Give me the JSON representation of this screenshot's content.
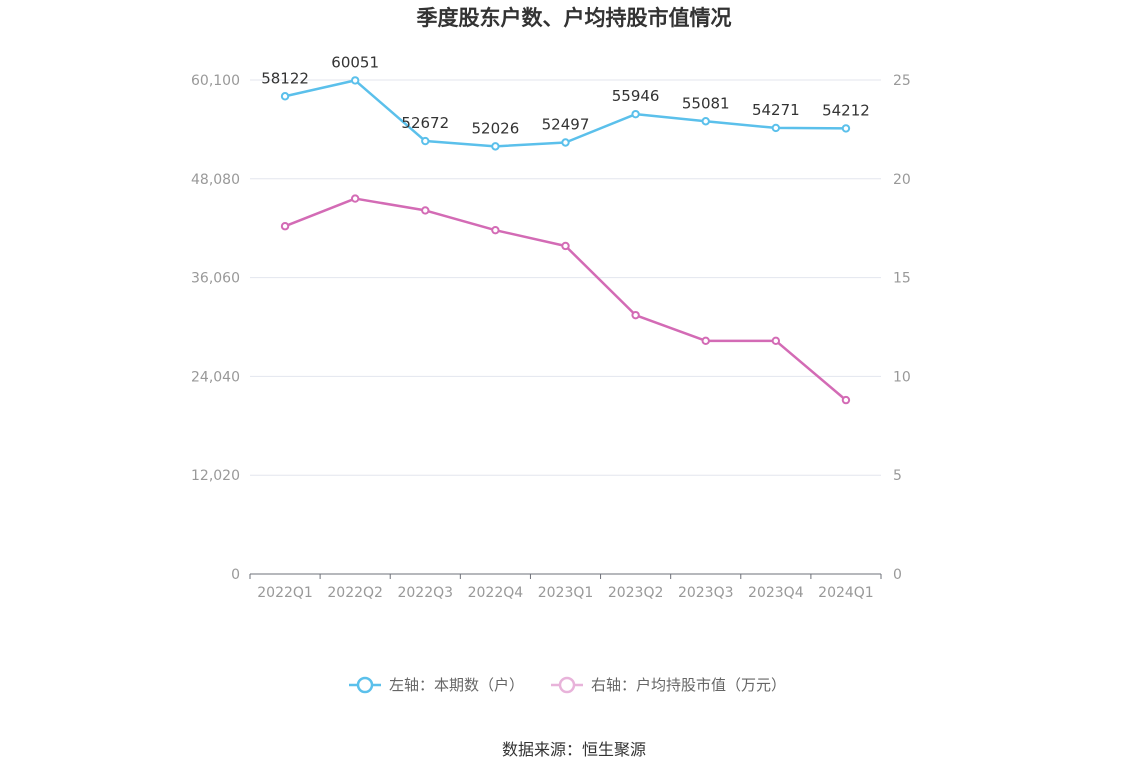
{
  "chart_data": {
    "type": "line",
    "title": "季度股东户数、户均持股市值情况",
    "categories": [
      "2022Q1",
      "2022Q2",
      "2022Q3",
      "2022Q4",
      "2023Q1",
      "2023Q2",
      "2023Q3",
      "2023Q4",
      "2024Q1"
    ],
    "series": [
      {
        "name": "左轴：本期数（户）",
        "axis": "left",
        "color": "#5bc0eb",
        "values": [
          58122,
          60051,
          52672,
          52026,
          52497,
          55946,
          55081,
          54271,
          54212
        ],
        "data_labels": [
          "58122",
          "60051",
          "52672",
          "52026",
          "52497",
          "55946",
          "55081",
          "54271",
          "54212"
        ]
      },
      {
        "name": "右轴：户均持股市值（万元）",
        "axis": "right",
        "color": "#d36bb5",
        "values": [
          17.6,
          19.0,
          18.4,
          17.4,
          16.6,
          13.1,
          11.8,
          11.8,
          8.8
        ]
      }
    ],
    "y_left": {
      "range": [
        0,
        60100
      ],
      "ticks": [
        "0",
        "12,020",
        "24,040",
        "36,060",
        "48,080",
        "60,100"
      ]
    },
    "y_right": {
      "range": [
        0,
        25
      ],
      "ticks": [
        "0",
        "5",
        "10",
        "15",
        "20",
        "25"
      ]
    },
    "grid": true,
    "legend_position": "bottom",
    "source": "数据来源：恒生聚源"
  }
}
